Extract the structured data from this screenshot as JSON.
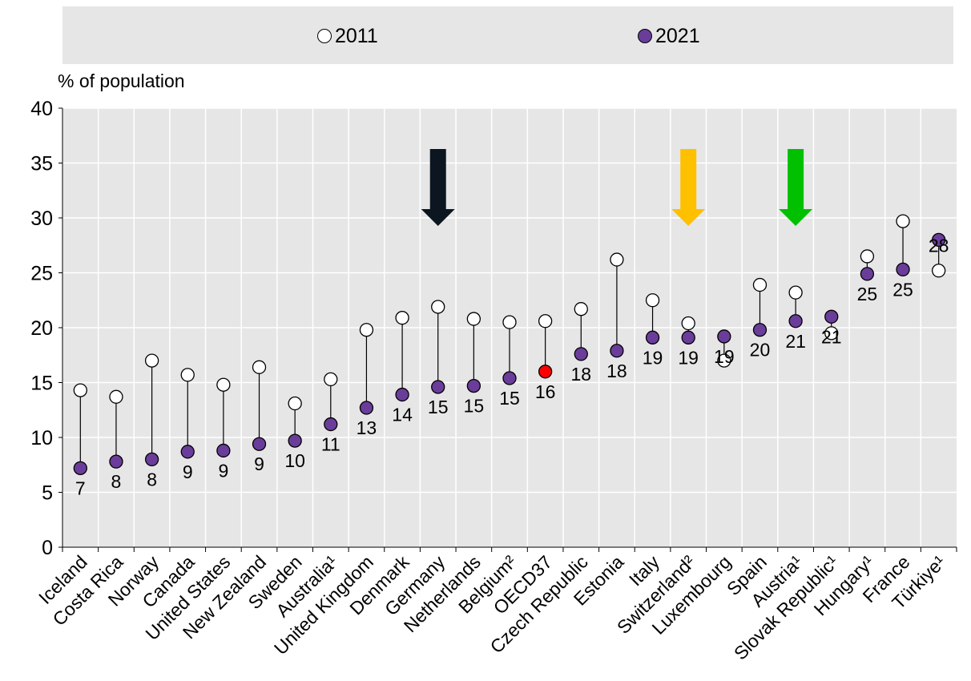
{
  "chart_data": {
    "type": "scatter",
    "ylabel": "% of population",
    "ylim": [
      0,
      40
    ],
    "yticks": [
      0,
      5,
      10,
      15,
      20,
      25,
      30,
      35,
      40
    ],
    "grid": true,
    "legend_position": "top",
    "categories": [
      "Iceland",
      "Costa Rica",
      "Norway",
      "Canada",
      "United States",
      "New Zealand",
      "Sweden",
      "Australia¹",
      "United Kingdom",
      "Denmark",
      "Germany",
      "Netherlands",
      "Belgium²",
      "OECD37",
      "Czech Republic",
      "Estonia",
      "Italy",
      "Switzerland²",
      "Luxembourg",
      "Spain",
      "Austria¹",
      "Slovak Republic¹",
      "Hungary¹",
      "France",
      "Türkiye¹"
    ],
    "series": [
      {
        "name": "2011",
        "marker": "white-circle",
        "values": [
          14.3,
          13.7,
          17.0,
          15.7,
          14.8,
          16.4,
          13.1,
          15.3,
          19.8,
          20.9,
          21.9,
          20.8,
          20.5,
          20.6,
          21.7,
          26.2,
          22.5,
          20.4,
          17.0,
          23.9,
          23.2,
          19.5,
          26.5,
          29.7,
          25.2
        ]
      },
      {
        "name": "2021",
        "marker": "purple-circle",
        "values": [
          7.2,
          7.8,
          8.0,
          8.7,
          8.8,
          9.4,
          9.7,
          11.2,
          12.7,
          13.9,
          14.6,
          14.7,
          15.4,
          16.0,
          17.6,
          17.9,
          19.1,
          19.1,
          19.2,
          19.8,
          20.6,
          21.0,
          24.9,
          25.3,
          28.0
        ]
      }
    ],
    "data_labels": [
      "7",
      "8",
      "8",
      "9",
      "9",
      "9",
      "10",
      "11",
      "13",
      "14",
      "15",
      "15",
      "15",
      "16",
      "18",
      "18",
      "19",
      "19",
      "19",
      "20",
      "21",
      "21",
      "25",
      "25",
      "28"
    ],
    "highlight_category": "OECD37",
    "arrows": [
      {
        "category": "Germany",
        "color": "#0b1620"
      },
      {
        "category": "Switzerland²",
        "color": "#ffc000"
      },
      {
        "category": "Austria¹",
        "color": "#00c000"
      }
    ],
    "colors": {
      "dot_2021": "#6a3d9a",
      "dot_2011": "#ffffff",
      "highlight": "#ff0000",
      "legend_bg": "#e6e6e6"
    }
  }
}
